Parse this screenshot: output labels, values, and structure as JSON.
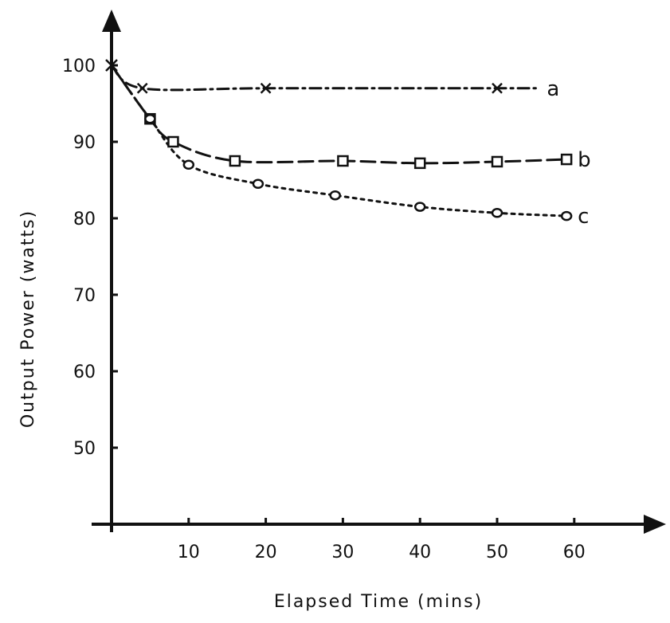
{
  "chart_data": {
    "type": "line",
    "xlabel": "Elapsed Time (mins)",
    "ylabel": "Output Power (watts)",
    "xlim": [
      0,
      70
    ],
    "ylim": [
      40,
      105
    ],
    "xticks": [
      10,
      20,
      30,
      40,
      50,
      60
    ],
    "yticks": [
      50,
      60,
      70,
      80,
      90,
      100
    ],
    "grid": false,
    "series": [
      {
        "name": "a",
        "marker": "x",
        "style": "dash-dot",
        "x": [
          0,
          4,
          20,
          50
        ],
        "y": [
          100,
          97,
          97,
          97
        ],
        "curve_end_x": 55
      },
      {
        "name": "b",
        "marker": "square",
        "style": "long-dash",
        "x": [
          0,
          5,
          8,
          16,
          30,
          40,
          50,
          59
        ],
        "y": [
          100,
          93,
          90,
          87.5,
          87.5,
          87.2,
          87.4,
          87.7
        ],
        "curve_end_x": 59
      },
      {
        "name": "c",
        "marker": "circle",
        "style": "dotted",
        "x": [
          0,
          5,
          10,
          19,
          29,
          40,
          50,
          59
        ],
        "y": [
          100,
          93,
          87,
          84.5,
          83,
          81.5,
          80.7,
          80.3
        ],
        "curve_end_x": 59
      }
    ]
  }
}
